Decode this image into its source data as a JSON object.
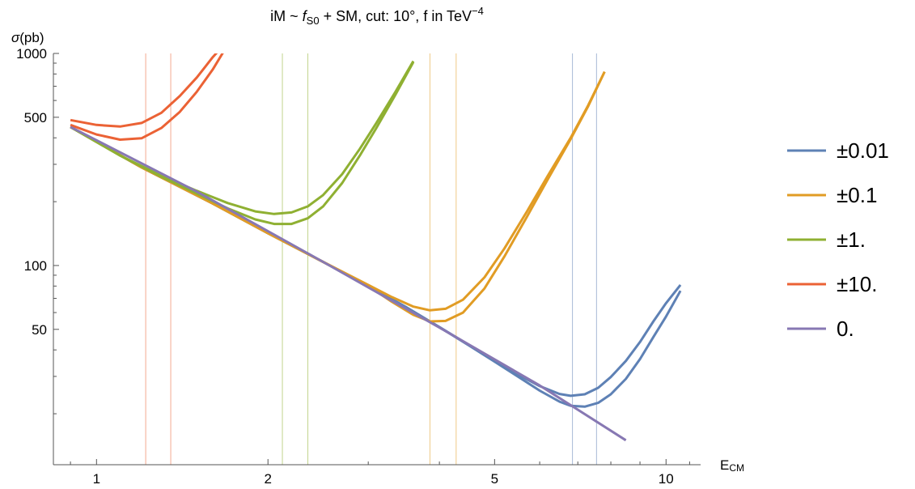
{
  "chart_data": {
    "type": "line",
    "title_parts": {
      "prefix": "iM ~ ",
      "coupling_symbol": "f",
      "coupling_subscript": "S0",
      "suffix": " + SM,  cut: 10°,  f in TeV",
      "exponent": "−4"
    },
    "ylabel": {
      "symbol": "σ",
      "unit": "(pb)"
    },
    "xlabel": {
      "main": "E",
      "subscript": "CM"
    },
    "x_scale": "log",
    "y_scale": "log",
    "xlim": [
      0.84,
      11.5
    ],
    "ylim": [
      11.5,
      1000
    ],
    "x_ticks": [
      {
        "value": 1,
        "label": "1"
      },
      {
        "value": 2,
        "label": "2"
      },
      {
        "value": 5,
        "label": "5"
      },
      {
        "value": 10,
        "label": "10"
      }
    ],
    "y_ticks": [
      {
        "value": 50,
        "label": "50"
      },
      {
        "value": 100,
        "label": "100"
      },
      {
        "value": 500,
        "label": "500"
      },
      {
        "value": 1000,
        "label": "1000"
      }
    ],
    "legend_position": "right",
    "series": [
      {
        "name": "±0.01",
        "color": "#5E81B5",
        "upper": {
          "x": [
            0.9,
            1.2,
            1.6,
            2.0,
            2.5,
            3.0,
            3.5,
            4.0,
            4.5,
            5.0,
            5.5,
            6.0,
            6.5,
            6.8,
            7.2,
            7.6,
            8.0,
            8.5,
            9.0,
            9.5,
            10.0,
            10.6
          ],
          "y": [
            450,
            290,
            196,
            142,
            104,
            80,
            63.5,
            51.3,
            42.3,
            35.6,
            30.6,
            27.0,
            24.8,
            24.3,
            24.7,
            26.5,
            29.8,
            35.5,
            43.6,
            54.5,
            66.5,
            81.0
          ]
        },
        "lower": {
          "x": [
            0.9,
            1.2,
            1.6,
            2.0,
            2.5,
            3.0,
            3.5,
            4.0,
            4.5,
            5.0,
            5.5,
            6.0,
            6.5,
            6.8,
            7.2,
            7.6,
            8.0,
            8.5,
            9.0,
            9.5,
            10.0,
            10.6
          ],
          "y": [
            450,
            290,
            196,
            142,
            104,
            80,
            63.5,
            51.2,
            42.1,
            35.2,
            29.9,
            25.7,
            22.8,
            21.8,
            21.6,
            22.5,
            24.7,
            29.2,
            36.2,
            46.0,
            57.5,
            76.0
          ]
        },
        "vlines": [
          6.85,
          7.55
        ]
      },
      {
        "name": "±0.1",
        "color": "#E19C24",
        "upper": {
          "x": [
            0.9,
            1.2,
            1.6,
            2.0,
            2.5,
            3.0,
            3.3,
            3.6,
            3.85,
            4.1,
            4.4,
            4.8,
            5.2,
            5.7,
            6.2,
            6.8,
            7.3,
            7.8
          ],
          "y": [
            450,
            290,
            196,
            142,
            104,
            81,
            71,
            64,
            61.5,
            62.5,
            69,
            88,
            120,
            180,
            265,
            400,
            570,
            820
          ]
        },
        "lower": {
          "x": [
            0.9,
            1.2,
            1.6,
            2.0,
            2.5,
            3.0,
            3.3,
            3.6,
            3.85,
            4.1,
            4.4,
            4.8,
            5.2,
            5.7,
            6.2,
            6.8,
            7.3,
            7.8
          ],
          "y": [
            450,
            290,
            196,
            142,
            104,
            80,
            67.5,
            58.5,
            54.5,
            54.8,
            60,
            78,
            110,
            170,
            255,
            395,
            565,
            820
          ]
        },
        "vlines": [
          3.85,
          4.28
        ]
      },
      {
        "name": "±1.",
        "color": "#8FB032",
        "upper": {
          "x": [
            0.9,
            1.1,
            1.3,
            1.5,
            1.7,
            1.9,
            2.05,
            2.2,
            2.35,
            2.5,
            2.7,
            2.9,
            3.1,
            3.35,
            3.6
          ],
          "y": [
            450,
            330,
            265,
            225,
            197,
            180,
            175,
            178,
            190,
            215,
            270,
            355,
            470,
            660,
            920
          ]
        },
        "lower": {
          "x": [
            0.9,
            1.1,
            1.3,
            1.5,
            1.7,
            1.9,
            2.05,
            2.2,
            2.35,
            2.5,
            2.7,
            2.9,
            3.1,
            3.35,
            3.6
          ],
          "y": [
            450,
            330,
            262,
            218,
            186,
            165,
            157,
            157,
            167,
            190,
            245,
            330,
            445,
            640,
            910
          ]
        },
        "vlines": [
          2.12,
          2.35
        ]
      },
      {
        "name": "±10.",
        "color": "#EB6235",
        "upper": {
          "x": [
            0.9,
            1.0,
            1.1,
            1.2,
            1.3,
            1.4,
            1.5,
            1.6,
            1.7
          ],
          "y": [
            485,
            460,
            452,
            470,
            525,
            630,
            770,
            960,
            1150
          ]
        },
        "lower": {
          "x": [
            0.9,
            1.0,
            1.1,
            1.2,
            1.3,
            1.4,
            1.5,
            1.6,
            1.7
          ],
          "y": [
            460,
            415,
            392,
            398,
            445,
            530,
            660,
            840,
            1100
          ]
        },
        "vlines": [
          1.22,
          1.35
        ]
      },
      {
        "name": "0.",
        "color": "#8778B3",
        "line": {
          "x": [
            0.9,
            1.5,
            2.5,
            4.0,
            6.0,
            8.5
          ],
          "y": [
            450,
            223,
            104,
            51,
            27.2,
            15.0
          ]
        }
      }
    ]
  }
}
